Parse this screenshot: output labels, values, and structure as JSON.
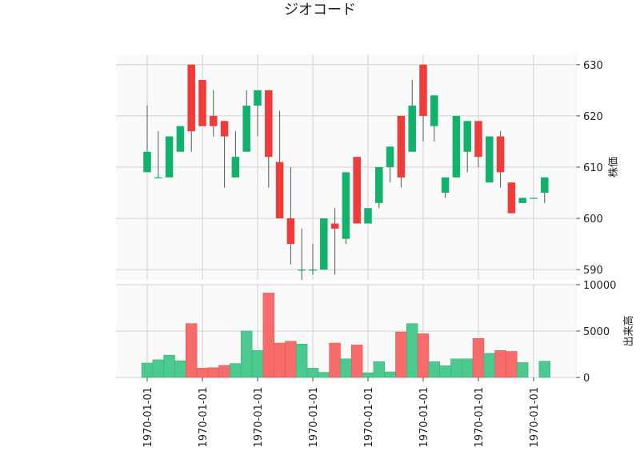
{
  "chart_data": {
    "type": "candlestick",
    "title": "ジオコード",
    "price_axis": {
      "label": "株価",
      "ylim": [
        588,
        632
      ],
      "ticks": [
        590,
        600,
        610,
        620,
        630
      ],
      "position": "right"
    },
    "volume_axis": {
      "label": "出来高",
      "ylim": [
        0,
        10000
      ],
      "ticks": [
        0,
        5000,
        10000
      ],
      "position": "right"
    },
    "x_tick_labels": [
      "1970-01-01",
      "1970-01-01",
      "1970-01-01",
      "1970-01-01",
      "1970-01-01",
      "1970-01-01",
      "1970-01-01",
      "1970-01-01"
    ],
    "x_tick_positions": [
      0,
      5,
      10,
      15,
      20,
      25,
      30,
      35
    ],
    "grid": true,
    "up_color": "#10b26c",
    "down_color": "#f03b3b",
    "candles": [
      {
        "open": 609,
        "high": 622,
        "low": 609,
        "close": 613,
        "volume": 1550
      },
      {
        "open": 608,
        "high": 617,
        "low": 608,
        "close": 608,
        "volume": 1900
      },
      {
        "open": 608,
        "high": 616,
        "low": 608,
        "close": 616,
        "volume": 2400
      },
      {
        "open": 613,
        "high": 618,
        "low": 613,
        "close": 618,
        "volume": 1800
      },
      {
        "open": 630,
        "high": 630,
        "low": 613,
        "close": 617,
        "volume": 5800
      },
      {
        "open": 627,
        "high": 627,
        "low": 618,
        "close": 618,
        "volume": 1000
      },
      {
        "open": 620,
        "high": 625,
        "low": 616,
        "close": 618,
        "volume": 1050
      },
      {
        "open": 619,
        "high": 619,
        "low": 606,
        "close": 616,
        "volume": 1300
      },
      {
        "open": 608,
        "high": 617,
        "low": 608,
        "close": 612,
        "volume": 1500
      },
      {
        "open": 613,
        "high": 625,
        "low": 613,
        "close": 622,
        "volume": 5000
      },
      {
        "open": 622,
        "high": 625,
        "low": 616,
        "close": 625,
        "volume": 2900
      },
      {
        "open": 625,
        "high": 625,
        "low": 606,
        "close": 612,
        "volume": 9100
      },
      {
        "open": 611,
        "high": 621,
        "low": 600,
        "close": 600,
        "volume": 3700
      },
      {
        "open": 600,
        "high": 610,
        "low": 591,
        "close": 595,
        "volume": 3900
      },
      {
        "open": 590,
        "high": 598,
        "low": 588,
        "close": 590,
        "volume": 3600
      },
      {
        "open": 590,
        "high": 595,
        "low": 589,
        "close": 590,
        "volume": 1000
      },
      {
        "open": 590,
        "high": 600,
        "low": 590,
        "close": 600,
        "volume": 550
      },
      {
        "open": 599,
        "high": 602,
        "low": 589,
        "close": 598,
        "volume": 3700
      },
      {
        "open": 596,
        "high": 609,
        "low": 595,
        "close": 609,
        "volume": 2000
      },
      {
        "open": 612,
        "high": 612,
        "low": 599,
        "close": 599,
        "volume": 3500
      },
      {
        "open": 599,
        "high": 602,
        "low": 599,
        "close": 602,
        "volume": 500
      },
      {
        "open": 603,
        "high": 610,
        "low": 602,
        "close": 610,
        "volume": 1700
      },
      {
        "open": 610,
        "high": 614,
        "low": 607,
        "close": 614,
        "volume": 600
      },
      {
        "open": 620,
        "high": 620,
        "low": 606,
        "close": 608,
        "volume": 4900
      },
      {
        "open": 613,
        "high": 627,
        "low": 613,
        "close": 622,
        "volume": 5800
      },
      {
        "open": 630,
        "high": 630,
        "low": 615,
        "close": 620,
        "volume": 4700
      },
      {
        "open": 618,
        "high": 624,
        "low": 615,
        "close": 624,
        "volume": 1700
      },
      {
        "open": 605,
        "high": 608,
        "low": 604,
        "close": 608,
        "volume": 1250
      },
      {
        "open": 608,
        "high": 620,
        "low": 608,
        "close": 620,
        "volume": 2000
      },
      {
        "open": 613,
        "high": 619,
        "low": 609,
        "close": 619,
        "volume": 2000
      },
      {
        "open": 619,
        "high": 619,
        "low": 610,
        "close": 612,
        "volume": 4200
      },
      {
        "open": 607,
        "high": 616,
        "low": 607,
        "close": 616,
        "volume": 2600
      },
      {
        "open": 616,
        "high": 617,
        "low": 606,
        "close": 609,
        "volume": 2900
      },
      {
        "open": 607,
        "high": 607,
        "low": 601,
        "close": 601,
        "volume": 2800
      },
      {
        "open": 603,
        "high": 604,
        "low": 603,
        "close": 604,
        "volume": 1600
      },
      {
        "open": 604,
        "high": 604,
        "low": 604,
        "close": 604,
        "volume": 0
      },
      {
        "open": 605,
        "high": 608,
        "low": 603,
        "close": 608,
        "volume": 1750
      }
    ]
  }
}
